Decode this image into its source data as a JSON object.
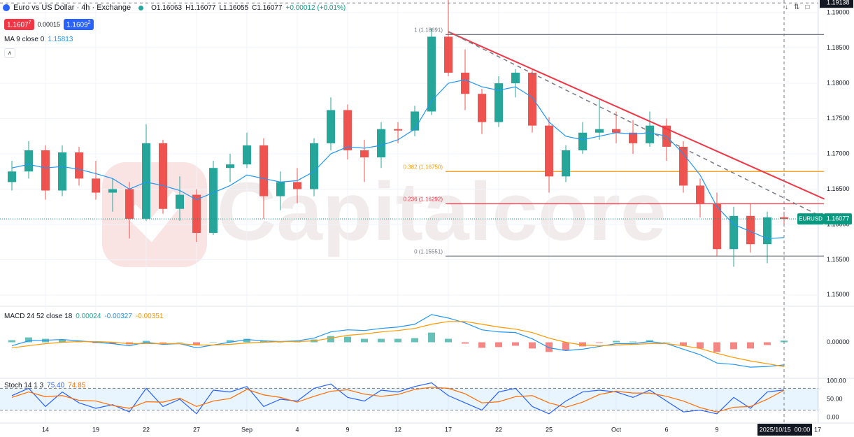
{
  "header": {
    "symbol": "Euro vs US Dollar · 4h · Exchange",
    "ohlc": [
      "O1.16063",
      "H1.16077",
      "L1.16055",
      "C1.16077",
      "+0.00012 (+0.01%)"
    ],
    "sell_main": "1.1607",
    "sell_sup": "7",
    "spread": "0.00015",
    "buy_main": "1.1609",
    "buy_sup": "2"
  },
  "watermark": "Capitalcore",
  "crosshair": {
    "index": 46,
    "price": 1.19138,
    "date": "2025/10/15  00:00"
  },
  "chart_data": [
    {
      "type": "candlestick",
      "categories": [
        null,
        null,
        "14",
        null,
        null,
        "19",
        null,
        null,
        "22",
        null,
        null,
        "27",
        null,
        null,
        "Sep",
        null,
        null,
        "4",
        null,
        null,
        "9",
        null,
        null,
        "12",
        null,
        null,
        "17",
        null,
        null,
        "22",
        null,
        null,
        "25",
        null,
        null,
        null,
        "Oct",
        null,
        null,
        "6",
        null,
        null,
        "9",
        null,
        null,
        null,
        null,
        null,
        "17"
      ],
      "open": [
        1.166,
        1.1675,
        1.1705,
        1.1648,
        1.1702,
        1.1665,
        1.1645,
        1.165,
        1.1608,
        1.1715,
        1.1622,
        1.1642,
        1.1588,
        1.168,
        1.1685,
        1.1712,
        1.164,
        1.166,
        1.165,
        1.1715,
        1.1762,
        1.1705,
        1.1695,
        1.1735,
        1.1733,
        1.176,
        1.1866,
        1.1815,
        1.1785,
        1.1745,
        1.18,
        1.1815,
        1.174,
        1.1668,
        1.1705,
        1.173,
        1.1735,
        1.173,
        1.1715,
        1.174,
        1.171,
        1.1655,
        1.163,
        1.1565,
        1.1612,
        1.1572,
        1.161,
        null,
        null
      ],
      "high": [
        1.169,
        1.1718,
        1.1712,
        1.1712,
        1.171,
        1.169,
        1.1665,
        1.166,
        1.1742,
        1.172,
        1.1668,
        1.165,
        1.169,
        1.17,
        1.173,
        1.1722,
        1.1675,
        1.168,
        1.1722,
        1.178,
        1.177,
        1.172,
        1.1745,
        1.1745,
        1.1768,
        1.1878,
        1.1918,
        1.1848,
        1.1792,
        1.181,
        1.182,
        1.182,
        1.1752,
        1.1712,
        1.1745,
        1.1778,
        1.176,
        1.1748,
        1.176,
        1.175,
        1.1718,
        1.1665,
        1.1645,
        1.1625,
        1.163,
        1.1618,
        1.1618,
        null,
        null
      ],
      "low": [
        1.1648,
        1.1665,
        1.1635,
        1.164,
        1.1655,
        1.1635,
        1.1618,
        1.158,
        1.1605,
        1.1615,
        1.1605,
        1.1575,
        1.1585,
        1.166,
        1.168,
        1.1608,
        1.162,
        1.163,
        1.164,
        1.1705,
        1.1692,
        1.166,
        1.168,
        1.1715,
        1.1725,
        1.1755,
        1.181,
        1.1762,
        1.1728,
        1.1738,
        1.178,
        1.173,
        1.1645,
        1.166,
        1.17,
        1.172,
        1.1715,
        1.17,
        1.171,
        1.169,
        1.1645,
        1.161,
        1.1555,
        1.154,
        1.156,
        1.1545,
        1.1598,
        null,
        null
      ],
      "close": [
        1.1675,
        1.1705,
        1.1648,
        1.1702,
        1.1665,
        1.1645,
        1.165,
        1.1608,
        1.1715,
        1.1622,
        1.1642,
        1.1588,
        1.168,
        1.1685,
        1.1712,
        1.164,
        1.166,
        1.165,
        1.1715,
        1.1762,
        1.1705,
        1.1695,
        1.1735,
        1.1733,
        1.176,
        1.1866,
        1.1815,
        1.1785,
        1.1745,
        1.18,
        1.1815,
        1.174,
        1.1668,
        1.1705,
        1.173,
        1.1735,
        1.173,
        1.1715,
        1.174,
        1.171,
        1.1655,
        1.163,
        1.1565,
        1.1612,
        1.1572,
        1.161,
        1.16077,
        null,
        null
      ],
      "up_color": "#26a69a",
      "down_color": "#ef5350",
      "series": [
        {
          "name": "MA 9 close 0",
          "color": "#2196f3",
          "values": [
            1.168,
            1.1685,
            1.168,
            1.1682,
            1.1678,
            1.1672,
            1.1665,
            1.165,
            1.166,
            1.1655,
            1.1648,
            1.1635,
            1.1645,
            1.1655,
            1.167,
            1.1665,
            1.166,
            1.1662,
            1.1675,
            1.17,
            1.171,
            1.1708,
            1.1712,
            1.172,
            1.1735,
            1.1775,
            1.18,
            1.1805,
            1.1795,
            1.179,
            1.1795,
            1.178,
            1.1745,
            1.1725,
            1.172,
            1.1725,
            1.173,
            1.1728,
            1.173,
            1.1725,
            1.17,
            1.167,
            1.1625,
            1.16,
            1.159,
            1.158,
            1.15813,
            null,
            null
          ]
        }
      ],
      "ylim": [
        1.1485,
        1.1918
      ],
      "yticks": [
        {
          "value": 1.15,
          "label": "1.15000"
        },
        {
          "value": 1.155,
          "label": "1.15500"
        },
        {
          "value": 1.16,
          "label": "1.16000"
        },
        {
          "value": 1.165,
          "label": "1.16500"
        },
        {
          "value": 1.17,
          "label": "1.17000"
        },
        {
          "value": 1.175,
          "label": "1.17500"
        },
        {
          "value": 1.18,
          "label": "1.18000"
        },
        {
          "value": 1.185,
          "label": "1.18500"
        },
        {
          "value": 1.19,
          "label": "1.19000"
        }
      ],
      "grid": true,
      "last_price": {
        "value": 1.16077,
        "label": "1.16077",
        "symbol": "EURUSD",
        "color": "#089981"
      },
      "fib_start": 26,
      "fib_levels": [
        {
          "value": 1.18691,
          "label": "1 (1.18691)",
          "color": "#787b86"
        },
        {
          "value": 1.1675,
          "label": "0.382 (1.16750)",
          "color": "#ff9800"
        },
        {
          "value": 1.16292,
          "label": "0.236 (1.16292)",
          "color": "#f23645"
        },
        {
          "value": 1.15551,
          "label": "0 (1.15551)",
          "color": "#787b86"
        }
      ],
      "trendlines": [
        {
          "points": [
            [
              26,
              1.1873
            ],
            [
              48.4,
              1.1636
            ]
          ],
          "color": "#f23645",
          "dashed": false
        },
        {
          "points": [
            [
              26,
              1.1873
            ],
            [
              48.4,
              1.1609
            ]
          ],
          "color": "#787b86",
          "dashed": true
        }
      ]
    },
    {
      "type": "macd",
      "title": "MACD 24 52 close 18",
      "series": [
        {
          "name": "histogram",
          "color": "#26a69a",
          "down_color": "#ef5350",
          "values": [
            0.0003,
            0.0007,
            0.0005,
            0.0004,
            0.0001,
            -0.0001,
            -0.0002,
            -0.0003,
            0.0002,
            -0.0001,
            0.0,
            -0.0004,
            0.0,
            0.0003,
            0.0005,
            0.0002,
            0.0,
            0.0001,
            0.0004,
            0.0009,
            0.0008,
            0.0005,
            0.0005,
            0.0005,
            0.0006,
            0.0014,
            0.0005,
            -0.0002,
            -0.0008,
            -0.0007,
            -0.0005,
            -0.0009,
            -0.0014,
            -0.0012,
            -0.0006,
            -0.0001,
            0.0002,
            0.0001,
            0.0003,
            0.0,
            -0.0005,
            -0.0009,
            -0.0014,
            -0.001,
            -0.0009,
            -0.0004,
            0.00024,
            null,
            null
          ]
        },
        {
          "name": "macd",
          "color": "#2196f3",
          "values": [
            -0.0005,
            0.0002,
            0.0003,
            0.0004,
            0.0002,
            0.0,
            -0.0002,
            -0.0005,
            0.0,
            -0.0003,
            -0.0002,
            -0.0008,
            -0.0004,
            0.0,
            0.0004,
            0.0002,
            0.0001,
            0.0002,
            0.0006,
            0.0015,
            0.0018,
            0.0017,
            0.002,
            0.0022,
            0.0026,
            0.004,
            0.0035,
            0.0028,
            0.0018,
            0.0015,
            0.0014,
            0.0005,
            -0.0008,
            -0.0012,
            -0.001,
            -0.0006,
            -0.0002,
            -0.0002,
            0.0001,
            -0.0002,
            -0.001,
            -0.0018,
            -0.003,
            -0.0032,
            -0.0036,
            -0.0035,
            -0.00327,
            null,
            null
          ]
        },
        {
          "name": "signal",
          "color": "#ff9800",
          "values": [
            -0.0008,
            -0.0005,
            -0.0002,
            0.0,
            0.0001,
            0.0001,
            0.0,
            -0.0002,
            -0.0002,
            -0.0002,
            -0.0002,
            -0.0004,
            -0.0004,
            -0.0003,
            -0.0001,
            0.0,
            0.0001,
            0.0001,
            0.0002,
            0.0006,
            0.001,
            0.0012,
            0.0015,
            0.0017,
            0.002,
            0.0026,
            0.003,
            0.003,
            0.0026,
            0.0022,
            0.0019,
            0.0014,
            0.0006,
            0.0,
            -0.0004,
            -0.0005,
            -0.0004,
            -0.0003,
            -0.0002,
            -0.0002,
            -0.0005,
            -0.0009,
            -0.0016,
            -0.0022,
            -0.0027,
            -0.0031,
            -0.00351,
            null,
            null
          ]
        }
      ],
      "ylim": [
        -0.0051,
        0.0049
      ],
      "yticks": [
        {
          "value": 0,
          "label": "0.00000"
        }
      ]
    },
    {
      "type": "stoch",
      "title": "Stoch 14 1 3",
      "series": [
        {
          "name": "k",
          "color": "#2962ff",
          "values": [
            60,
            80,
            30,
            70,
            40,
            25,
            35,
            15,
            80,
            30,
            50,
            10,
            75,
            70,
            85,
            30,
            50,
            45,
            80,
            92,
            55,
            45,
            75,
            70,
            85,
            95,
            60,
            40,
            20,
            70,
            80,
            30,
            10,
            45,
            70,
            75,
            70,
            55,
            75,
            45,
            15,
            20,
            10,
            55,
            25,
            70,
            75.4,
            null,
            null
          ],
          "value_labels": [
            null,
            null,
            null,
            null,
            null,
            null,
            null,
            null,
            null,
            null,
            null,
            null,
            null,
            null,
            null,
            null,
            null,
            null,
            null,
            null,
            null,
            null,
            null,
            null,
            null,
            null,
            null,
            null,
            null,
            null,
            null,
            null,
            null,
            null,
            null,
            null,
            null,
            null,
            null,
            null,
            null,
            null,
            null,
            null,
            null,
            null,
            "75.40",
            null,
            null
          ]
        },
        {
          "name": "d",
          "color": "#ff6d00",
          "values": [
            55,
            70,
            57,
            60,
            47,
            45,
            33,
            25,
            43,
            42,
            53,
            30,
            45,
            52,
            77,
            62,
            55,
            42,
            58,
            72,
            76,
            64,
            58,
            63,
            77,
            83,
            80,
            65,
            40,
            43,
            57,
            60,
            40,
            28,
            42,
            63,
            72,
            67,
            67,
            58,
            45,
            27,
            15,
            28,
            30,
            50,
            74.85,
            null,
            null
          ]
        }
      ],
      "bands": [
        20,
        80
      ],
      "ylim": [
        -5.8,
        103.8
      ],
      "yticks": [
        {
          "value": 0,
          "label": "0.00"
        },
        {
          "value": 50,
          "label": "50.00"
        },
        {
          "value": 100,
          "label": "100.00"
        }
      ]
    }
  ]
}
